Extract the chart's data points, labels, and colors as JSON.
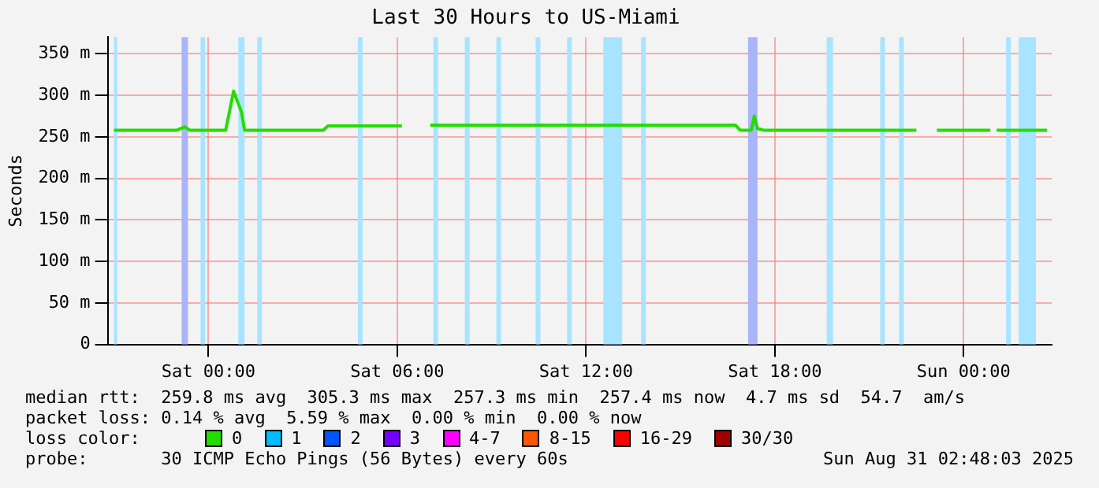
{
  "chart_data": {
    "type": "line",
    "title": "Last 30 Hours to US-Miami",
    "ylabel": "Seconds",
    "legend_title": "loss color:",
    "legend": "bottom",
    "grid": true,
    "x": [
      "2025-08-29T21:00",
      "2025-08-29T23:00",
      "2025-08-29T23:15",
      "2025-08-29T23:24",
      "2025-08-30T00:33",
      "2025-08-30T00:48",
      "2025-08-30T01:03",
      "2025-08-30T01:09",
      "2025-08-30T03:39",
      "2025-08-30T03:48",
      "2025-08-30T06:09",
      "2025-08-30T06:30",
      "2025-08-30T07:03",
      "2025-08-30T16:45",
      "2025-08-30T16:54",
      "2025-08-30T17:15",
      "2025-08-30T17:21",
      "2025-08-30T17:27",
      "2025-08-30T17:39",
      "2025-08-30T22:30",
      "2025-08-30T22:57",
      "2025-08-30T23:09",
      "2025-08-31T00:51",
      "2025-08-31T00:57",
      "2025-08-31T01:03",
      "2025-08-31T02:39"
    ],
    "series": [
      {
        "name": "0",
        "color": "#22dd00",
        "values": [
          258,
          258,
          262,
          258,
          258,
          305,
          280,
          258,
          258,
          263,
          263,
          null,
          264,
          264,
          258,
          258,
          275,
          260,
          258,
          258,
          null,
          258,
          258,
          null,
          258,
          258
        ]
      },
      {
        "name": "1",
        "color": "#00bbff",
        "values": [
          null,
          null,
          null,
          null,
          null,
          null,
          null,
          null,
          null,
          null,
          null,
          null,
          null,
          null,
          null,
          null,
          null,
          null,
          null,
          null,
          null,
          null,
          null,
          null,
          null,
          null
        ]
      },
      {
        "name": "2",
        "color": "#0055ff",
        "values": [
          null,
          null,
          null,
          null,
          null,
          null,
          null,
          null,
          null,
          null,
          null,
          null,
          null,
          null,
          null,
          null,
          null,
          null,
          null,
          null,
          null,
          null,
          null,
          null,
          null,
          null
        ]
      },
      {
        "name": "3",
        "color": "#7700ff",
        "values": [
          null,
          null,
          null,
          null,
          null,
          null,
          null,
          null,
          null,
          null,
          null,
          null,
          null,
          null,
          null,
          null,
          null,
          null,
          null,
          null,
          null,
          null,
          null,
          null,
          null,
          null
        ]
      },
      {
        "name": "4-7",
        "color": "#ff00ff",
        "values": [
          null,
          null,
          null,
          null,
          null,
          null,
          null,
          null,
          null,
          null,
          null,
          null,
          null,
          null,
          null,
          null,
          null,
          null,
          null,
          null,
          null,
          null,
          null,
          null,
          null,
          null
        ]
      },
      {
        "name": "8-15",
        "color": "#ff5500",
        "values": [
          null,
          null,
          null,
          null,
          null,
          null,
          null,
          null,
          null,
          null,
          null,
          null,
          null,
          null,
          null,
          null,
          null,
          null,
          null,
          null,
          null,
          null,
          null,
          null,
          null,
          null
        ]
      },
      {
        "name": "16-29",
        "color": "#ff0000",
        "values": [
          null,
          null,
          null,
          null,
          null,
          null,
          null,
          null,
          null,
          null,
          null,
          null,
          null,
          null,
          null,
          null,
          null,
          null,
          null,
          null,
          null,
          null,
          null,
          null,
          null,
          null
        ]
      },
      {
        "name": "30/30",
        "color": "#a10000",
        "values": [
          null,
          null,
          null,
          null,
          null,
          null,
          null,
          null,
          null,
          null,
          null,
          null,
          null,
          null,
          null,
          null,
          null,
          null,
          null,
          null,
          null,
          null,
          null,
          null,
          null,
          null
        ]
      }
    ],
    "xlim": [
      "2025-08-29T20:48",
      "2025-08-31T02:48"
    ],
    "xticks": [
      {
        "value": "2025-08-30T00:00",
        "label": "Sat 00:00"
      },
      {
        "value": "2025-08-30T06:00",
        "label": "Sat 06:00"
      },
      {
        "value": "2025-08-30T12:00",
        "label": "Sat 12:00"
      },
      {
        "value": "2025-08-30T18:00",
        "label": "Sat 18:00"
      },
      {
        "value": "2025-08-31T00:00",
        "label": "Sun 00:00"
      }
    ],
    "ylim": [
      0,
      370
    ],
    "yticks": [
      {
        "value": 0,
        "label": "0"
      },
      {
        "value": 50,
        "label": "50 m"
      },
      {
        "value": 100,
        "label": "100 m"
      },
      {
        "value": 150,
        "label": "150 m"
      },
      {
        "value": 200,
        "label": "200 m"
      },
      {
        "value": 250,
        "label": "250 m"
      },
      {
        "value": 300,
        "label": "300 m"
      },
      {
        "value": 350,
        "label": "350 m"
      }
    ],
    "bands": [
      {
        "axis": "x",
        "from": "2025-08-29T21:00",
        "to": "2025-08-29T21:06",
        "color": "#a8e4ff"
      },
      {
        "axis": "x",
        "from": "2025-08-29T23:09",
        "to": "2025-08-29T23:21",
        "color": "#aab4f8"
      },
      {
        "axis": "x",
        "from": "2025-08-29T23:45",
        "to": "2025-08-29T23:54",
        "color": "#a8e4ff"
      },
      {
        "axis": "x",
        "from": "2025-08-30T00:57",
        "to": "2025-08-30T01:09",
        "color": "#a8e4ff"
      },
      {
        "axis": "x",
        "from": "2025-08-30T01:33",
        "to": "2025-08-30T01:42",
        "color": "#a8e4ff"
      },
      {
        "axis": "x",
        "from": "2025-08-30T04:45",
        "to": "2025-08-30T04:54",
        "color": "#a8e4ff"
      },
      {
        "axis": "x",
        "from": "2025-08-30T07:09",
        "to": "2025-08-30T07:18",
        "color": "#a8e4ff"
      },
      {
        "axis": "x",
        "from": "2025-08-30T08:09",
        "to": "2025-08-30T08:18",
        "color": "#a8e4ff"
      },
      {
        "axis": "x",
        "from": "2025-08-30T09:09",
        "to": "2025-08-30T09:18",
        "color": "#a8e4ff"
      },
      {
        "axis": "x",
        "from": "2025-08-30T10:24",
        "to": "2025-08-30T10:33",
        "color": "#a8e4ff"
      },
      {
        "axis": "x",
        "from": "2025-08-30T11:24",
        "to": "2025-08-30T11:33",
        "color": "#a8e4ff"
      },
      {
        "axis": "x",
        "from": "2025-08-30T12:33",
        "to": "2025-08-30T13:09",
        "color": "#a8e4ff"
      },
      {
        "axis": "x",
        "from": "2025-08-30T13:45",
        "to": "2025-08-30T13:54",
        "color": "#a8e4ff"
      },
      {
        "axis": "x",
        "from": "2025-08-30T17:09",
        "to": "2025-08-30T17:27",
        "color": "#aab4f8"
      },
      {
        "axis": "x",
        "from": "2025-08-30T19:39",
        "to": "2025-08-30T19:51",
        "color": "#a8e4ff"
      },
      {
        "axis": "x",
        "from": "2025-08-30T21:21",
        "to": "2025-08-30T21:30",
        "color": "#a8e4ff"
      },
      {
        "axis": "x",
        "from": "2025-08-30T21:57",
        "to": "2025-08-30T22:06",
        "color": "#a8e4ff"
      },
      {
        "axis": "x",
        "from": "2025-08-31T01:21",
        "to": "2025-08-31T01:30",
        "color": "#a8e4ff"
      },
      {
        "axis": "x",
        "from": "2025-08-31T01:45",
        "to": "2025-08-31T02:18",
        "color": "#a8e4ff"
      }
    ],
    "annotations": [
      "median rtt:  259.8 ms avg  305.3 ms max  257.3 ms min  257.4 ms now  4.7 ms sd  54.7  am/s",
      "packet loss: 0.14 % avg  5.59 % max  0.00 % min  0.00 % now",
      "probe:       30 ICMP Echo Pings (56 Bytes) every 60s",
      "Sun Aug 31 02:48:03 2025"
    ]
  }
}
